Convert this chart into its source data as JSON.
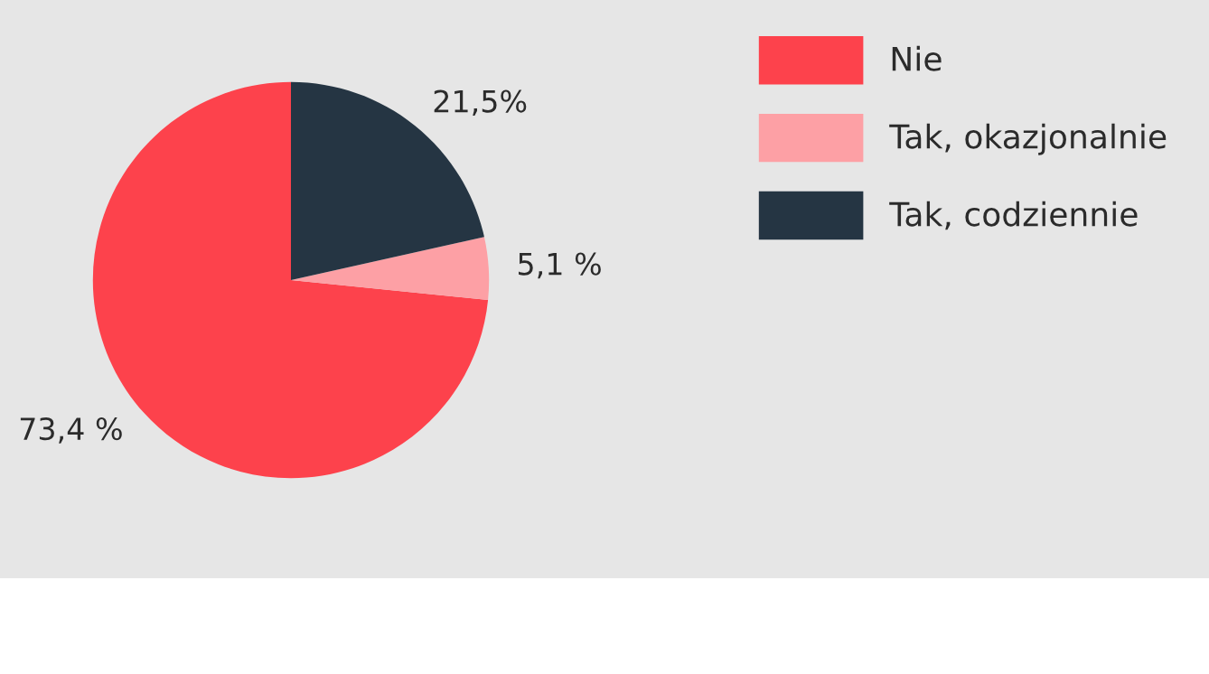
{
  "chart_data": {
    "type": "pie",
    "categories": [
      "Nie",
      "Tak, okazjonalnie",
      "Tak, codziennie"
    ],
    "values": [
      73.4,
      5.1,
      21.5
    ],
    "colors": [
      "#fd424c",
      "#fda0a5",
      "#253543"
    ],
    "value_labels": [
      "73,4 %",
      "5,1 %",
      "21,5%"
    ],
    "legend": "top right"
  }
}
